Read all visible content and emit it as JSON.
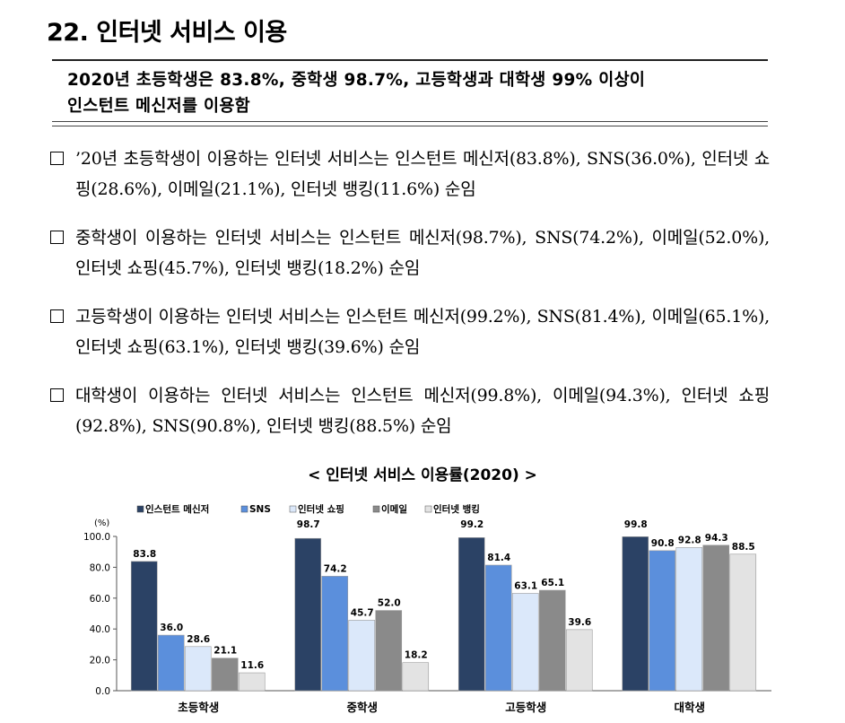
{
  "heading": "22. 인터넷 서비스 이용",
  "summary": {
    "line1": "2020년 초등학생은 83.8%, 중학생 98.7%, 고등학생과 대학생 99% 이상이",
    "line2": "인스턴트 메신저를 이용함"
  },
  "bullets": [
    "’20년 초등학생이 이용하는 인터넷 서비스는 인스턴트 메신저(83.8%), SNS(36.0%), 인터넷 쇼핑(28.6%), 이메일(21.1%), 인터넷 뱅킹(11.6%) 순임",
    "중학생이 이용하는 인터넷 서비스는 인스턴트 메신저(98.7%), SNS(74.2%), 이메일(52.0%), 인터넷 쇼핑(45.7%), 인터넷 뱅킹(18.2%) 순임",
    "고등학생이 이용하는 인터넷 서비스는 인스턴트 메신저(99.2%), SNS(81.4%), 이메일(65.1%), 인터넷 쇼핑(63.1%), 인터넷 뱅킹(39.6%) 순임",
    "대학생이 이용하는 인터넷 서비스는 인스턴트 메신저(99.8%), 이메일(94.3%), 인터넷 쇼핑(92.8%), SNS(90.8%), 인터넷 뱅킹(88.5%) 순임"
  ],
  "chart_data": {
    "type": "bar",
    "title": "< 인터넷 서비스 이용률(2020) >",
    "ylabel": "(%)",
    "ylim": [
      0,
      100
    ],
    "yticks": [
      "0.0",
      "20.0",
      "40.0",
      "60.0",
      "80.0",
      "100.0"
    ],
    "categories": [
      "초등학생",
      "중학생",
      "고등학생",
      "대학생"
    ],
    "legend_position": "top-left",
    "grid": false,
    "series": [
      {
        "name": "인스턴트 메신저",
        "color": "#2b4265",
        "values": [
          83.8,
          98.7,
          99.2,
          99.8
        ]
      },
      {
        "name": "SNS",
        "color": "#5b8fdc",
        "values": [
          36.0,
          74.2,
          81.4,
          90.8
        ]
      },
      {
        "name": "인터넷 쇼핑",
        "color": "#dbe8fa",
        "values": [
          28.6,
          45.7,
          63.1,
          92.8
        ]
      },
      {
        "name": "이메일",
        "color": "#8a8a8a",
        "values": [
          21.1,
          52.0,
          65.1,
          94.3
        ]
      },
      {
        "name": "인터넷 뱅킹",
        "color": "#e3e3e3",
        "values": [
          11.6,
          18.2,
          39.6,
          88.5
        ]
      }
    ]
  }
}
